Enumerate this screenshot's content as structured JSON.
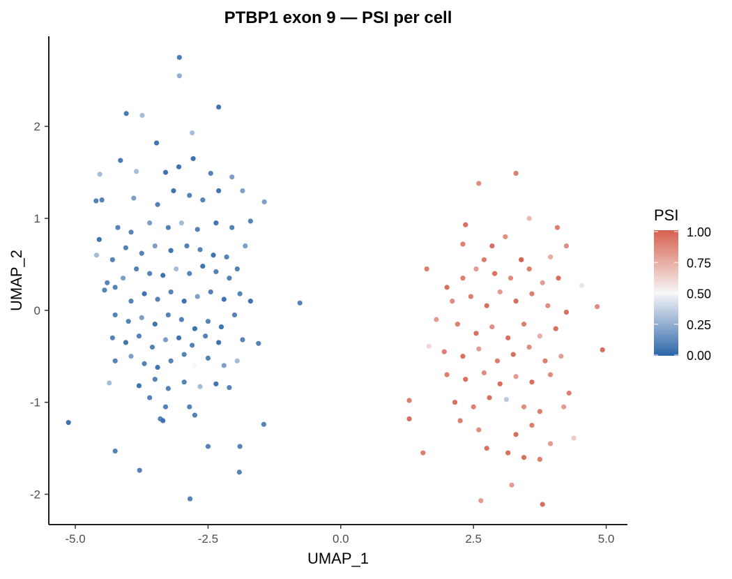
{
  "chart_data": {
    "type": "scatter",
    "title": "PTBP1 exon 9 — PSI per cell",
    "xlabel": "UMAP_1",
    "ylabel": "UMAP_2",
    "xlim": [
      -5.5,
      5.4
    ],
    "ylim": [
      -2.33,
      2.98
    ],
    "xticks": [
      -5.0,
      -2.5,
      0.0,
      2.5,
      5.0
    ],
    "xtick_labels": [
      "-5.0",
      "-2.5",
      "0.0",
      "2.5",
      "5.0"
    ],
    "yticks": [
      -2,
      -1,
      0,
      1,
      2
    ],
    "ytick_labels": [
      "-2",
      "-1",
      "0",
      "1",
      "2"
    ],
    "grid": false,
    "legend": {
      "title": "PSI",
      "placement": "right",
      "ticks": [
        0,
        0.25,
        0.5,
        0.75,
        1
      ],
      "tick_labels": [
        "0.00",
        "0.25",
        "0.50",
        "0.75",
        "1.00"
      ],
      "colors": {
        "low": "#2c65a8",
        "mid": "#f7f7f7",
        "high": "#d6604d"
      }
    },
    "points_fields": [
      "UMAP_1",
      "UMAP_2",
      "PSI"
    ],
    "points": [
      [
        -3.04,
        2.75,
        0.08
      ],
      [
        -3.04,
        2.55,
        0.25
      ],
      [
        -4.04,
        2.14,
        0.08
      ],
      [
        -3.74,
        2.12,
        0.3
      ],
      [
        -2.3,
        2.21,
        0.05
      ],
      [
        -2.8,
        1.93,
        0.3
      ],
      [
        -3.47,
        1.82,
        0.05
      ],
      [
        -5.13,
        -1.22,
        0.05
      ],
      [
        -4.25,
        -1.53,
        0.1
      ],
      [
        -3.79,
        -1.74,
        0.1
      ],
      [
        -2.84,
        -2.05,
        0.1
      ],
      [
        -2.5,
        -1.48,
        0.1
      ],
      [
        -1.9,
        -1.48,
        0.1
      ],
      [
        -1.91,
        -1.76,
        0.1
      ],
      [
        -1.45,
        -1.24,
        0.1
      ],
      [
        -0.77,
        0.08,
        0.1
      ],
      [
        -1.44,
        1.18,
        0.2
      ],
      [
        -4.36,
        -0.79,
        0.3
      ],
      [
        -4.61,
        1.19,
        0.1
      ],
      [
        -4.54,
        1.48,
        0.3
      ],
      [
        -4.15,
        1.63,
        0.08
      ],
      [
        -3.85,
        1.51,
        0.3
      ],
      [
        -3.3,
        1.5,
        0.05
      ],
      [
        -3.05,
        1.56,
        0.05
      ],
      [
        -2.78,
        1.65,
        0.05
      ],
      [
        -2.45,
        1.49,
        0.1
      ],
      [
        -2.05,
        1.45,
        0.2
      ],
      [
        -4.5,
        1.2,
        0.1
      ],
      [
        -3.9,
        1.22,
        0.2
      ],
      [
        -3.45,
        1.15,
        0.1
      ],
      [
        -3.15,
        1.3,
        0.05
      ],
      [
        -2.85,
        1.25,
        0.1
      ],
      [
        -2.6,
        1.2,
        0.1
      ],
      [
        -2.3,
        1.3,
        0.05
      ],
      [
        -1.85,
        1.3,
        0.2
      ],
      [
        -4.55,
        0.77,
        0.05
      ],
      [
        -4.2,
        0.9,
        0.1
      ],
      [
        -3.95,
        0.85,
        0.1
      ],
      [
        -3.6,
        0.95,
        0.2
      ],
      [
        -3.25,
        0.9,
        0.1
      ],
      [
        -3.0,
        0.95,
        0.3
      ],
      [
        -2.7,
        0.88,
        0.1
      ],
      [
        -2.35,
        0.95,
        0.05
      ],
      [
        -2.05,
        0.9,
        0.1
      ],
      [
        -1.7,
        0.97,
        0.1
      ],
      [
        -4.6,
        0.6,
        0.3
      ],
      [
        -4.3,
        0.55,
        0.1
      ],
      [
        -4.05,
        0.68,
        0.1
      ],
      [
        -3.75,
        0.62,
        0.1
      ],
      [
        -3.5,
        0.7,
        0.2
      ],
      [
        -3.2,
        0.65,
        0.05
      ],
      [
        -2.9,
        0.7,
        0.1
      ],
      [
        -2.65,
        0.66,
        0.1
      ],
      [
        -2.4,
        0.6,
        0.05
      ],
      [
        -2.15,
        0.58,
        0.1
      ],
      [
        -1.8,
        0.7,
        0.2
      ],
      [
        -4.4,
        0.3,
        0.1
      ],
      [
        -4.1,
        0.35,
        0.2
      ],
      [
        -3.85,
        0.45,
        0.1
      ],
      [
        -3.6,
        0.4,
        0.1
      ],
      [
        -3.35,
        0.38,
        0.05
      ],
      [
        -3.1,
        0.45,
        0.3
      ],
      [
        -2.85,
        0.4,
        0.1
      ],
      [
        -2.6,
        0.48,
        0.05
      ],
      [
        -2.35,
        0.42,
        0.1
      ],
      [
        -2.1,
        0.35,
        0.1
      ],
      [
        -1.95,
        0.45,
        0.1
      ],
      [
        -4.45,
        0.22,
        0.1
      ],
      [
        -4.25,
        0.25,
        0.1
      ],
      [
        -3.95,
        0.1,
        0.1
      ],
      [
        -3.7,
        0.18,
        0.05
      ],
      [
        -3.45,
        0.12,
        0.1
      ],
      [
        -3.2,
        0.2,
        0.1
      ],
      [
        -2.95,
        0.1,
        0.05
      ],
      [
        -2.7,
        0.15,
        0.2
      ],
      [
        -2.45,
        0.2,
        0.1
      ],
      [
        -2.2,
        0.12,
        0.05
      ],
      [
        -1.9,
        0.18,
        0.1
      ],
      [
        -1.7,
        0.1,
        0.05
      ],
      [
        -4.25,
        -0.05,
        0.1
      ],
      [
        -4.0,
        -0.12,
        0.1
      ],
      [
        -3.75,
        -0.08,
        0.2
      ],
      [
        -3.5,
        -0.15,
        0.05
      ],
      [
        -3.25,
        -0.05,
        0.1
      ],
      [
        -3.0,
        -0.1,
        0.1
      ],
      [
        -2.75,
        -0.2,
        0.05
      ],
      [
        -2.5,
        -0.12,
        0.1
      ],
      [
        -2.25,
        -0.18,
        0.05
      ],
      [
        -2.0,
        -0.05,
        0.1
      ],
      [
        -4.3,
        -0.3,
        0.1
      ],
      [
        -4.05,
        -0.35,
        0.05
      ],
      [
        -3.8,
        -0.28,
        0.1
      ],
      [
        -3.55,
        -0.4,
        0.1
      ],
      [
        -3.3,
        -0.32,
        0.2
      ],
      [
        -3.05,
        -0.3,
        0.05
      ],
      [
        -2.8,
        -0.38,
        0.1
      ],
      [
        -2.55,
        -0.28,
        0.1
      ],
      [
        -2.3,
        -0.35,
        0.05
      ],
      [
        -1.85,
        -0.32,
        0.1
      ],
      [
        -1.55,
        -0.36,
        0.1
      ],
      [
        -4.25,
        -0.55,
        0.1
      ],
      [
        -3.95,
        -0.5,
        0.2
      ],
      [
        -3.7,
        -0.58,
        0.1
      ],
      [
        -3.45,
        -0.62,
        0.05
      ],
      [
        -3.2,
        -0.55,
        0.1
      ],
      [
        -2.95,
        -0.48,
        0.1
      ],
      [
        -2.75,
        -0.6,
        0.5
      ],
      [
        -2.5,
        -0.52,
        0.1
      ],
      [
        -2.2,
        -0.6,
        0.2
      ],
      [
        -1.95,
        -0.55,
        0.3
      ],
      [
        -3.8,
        -0.82,
        0.05
      ],
      [
        -3.5,
        -0.75,
        0.1
      ],
      [
        -3.25,
        -0.85,
        0.1
      ],
      [
        -2.95,
        -0.78,
        0.1
      ],
      [
        -2.65,
        -0.83,
        0.3
      ],
      [
        -2.35,
        -0.8,
        0.05
      ],
      [
        -2.1,
        -0.84,
        0.1
      ],
      [
        -3.6,
        -0.95,
        0.1
      ],
      [
        -3.3,
        -1.05,
        0.1
      ],
      [
        -2.85,
        -1.05,
        0.1
      ],
      [
        -3.4,
        -1.18,
        0.1
      ],
      [
        -3.35,
        -1.2,
        0.05
      ],
      [
        -2.75,
        -1.14,
        0.1
      ],
      [
        3.3,
        1.49,
        0.9
      ],
      [
        2.6,
        1.38,
        0.85
      ],
      [
        3.55,
        1.0,
        0.7
      ],
      [
        4.08,
        0.9,
        0.9
      ],
      [
        4.54,
        0.27,
        0.45
      ],
      [
        4.83,
        0.04,
        0.85
      ],
      [
        4.93,
        -0.43,
        0.95
      ],
      [
        1.29,
        -0.98,
        0.9
      ],
      [
        1.29,
        -1.18,
        0.95
      ],
      [
        1.55,
        -1.55,
        0.9
      ],
      [
        2.64,
        -2.07,
        0.8
      ],
      [
        3.22,
        -1.9,
        0.8
      ],
      [
        3.8,
        -2.11,
        0.95
      ],
      [
        4.39,
        -1.39,
        0.65
      ],
      [
        3.12,
        -0.97,
        0.35
      ],
      [
        1.66,
        -0.39,
        0.6
      ],
      [
        1.62,
        0.45,
        0.9
      ],
      [
        2.35,
        0.93,
        0.95
      ],
      [
        2.3,
        0.72,
        0.9
      ],
      [
        3.1,
        0.8,
        0.85
      ],
      [
        2.85,
        0.7,
        0.95
      ],
      [
        4.25,
        0.7,
        0.85
      ],
      [
        3.95,
        0.58,
        0.75
      ],
      [
        2.7,
        0.55,
        0.9
      ],
      [
        3.4,
        0.55,
        1.0
      ],
      [
        2.0,
        0.25,
        0.95
      ],
      [
        2.3,
        0.35,
        0.9
      ],
      [
        2.55,
        0.45,
        0.8
      ],
      [
        2.9,
        0.4,
        0.95
      ],
      [
        3.2,
        0.35,
        0.85
      ],
      [
        3.55,
        0.45,
        0.9
      ],
      [
        3.8,
        0.3,
        0.8
      ],
      [
        4.1,
        0.35,
        0.95
      ],
      [
        2.1,
        0.1,
        0.85
      ],
      [
        2.45,
        0.15,
        0.9
      ],
      [
        2.75,
        0.05,
        0.95
      ],
      [
        3.0,
        0.2,
        0.8
      ],
      [
        3.3,
        0.1,
        0.95
      ],
      [
        3.6,
        0.18,
        0.9
      ],
      [
        3.9,
        0.05,
        0.85
      ],
      [
        4.25,
        -0.02,
        0.95
      ],
      [
        1.8,
        -0.1,
        0.8
      ],
      [
        2.2,
        -0.15,
        0.9
      ],
      [
        2.55,
        -0.25,
        0.95
      ],
      [
        2.85,
        -0.18,
        0.85
      ],
      [
        3.15,
        -0.3,
        0.95
      ],
      [
        3.45,
        -0.15,
        0.9
      ],
      [
        3.75,
        -0.28,
        0.75
      ],
      [
        4.05,
        -0.2,
        0.95
      ],
      [
        1.95,
        -0.45,
        0.9
      ],
      [
        2.3,
        -0.5,
        0.95
      ],
      [
        2.6,
        -0.42,
        0.8
      ],
      [
        2.95,
        -0.55,
        0.9
      ],
      [
        3.25,
        -0.48,
        0.95
      ],
      [
        3.55,
        -0.4,
        0.85
      ],
      [
        3.85,
        -0.55,
        0.9
      ],
      [
        4.15,
        -0.5,
        0.8
      ],
      [
        2.0,
        -0.7,
        0.9
      ],
      [
        2.35,
        -0.75,
        0.95
      ],
      [
        2.7,
        -0.68,
        0.85
      ],
      [
        3.0,
        -0.8,
        0.95
      ],
      [
        3.3,
        -0.72,
        0.8
      ],
      [
        3.6,
        -0.78,
        0.95
      ],
      [
        3.95,
        -0.7,
        0.85
      ],
      [
        4.3,
        -0.9,
        0.9
      ],
      [
        2.15,
        -1.0,
        0.95
      ],
      [
        2.5,
        -1.05,
        0.9
      ],
      [
        2.8,
        -0.95,
        0.95
      ],
      [
        3.45,
        -1.05,
        0.85
      ],
      [
        3.75,
        -1.1,
        0.9
      ],
      [
        4.2,
        -1.05,
        0.8
      ],
      [
        2.25,
        -1.2,
        0.9
      ],
      [
        2.6,
        -1.3,
        0.85
      ],
      [
        3.3,
        -1.35,
        0.95
      ],
      [
        3.6,
        -1.25,
        0.9
      ],
      [
        3.95,
        -1.45,
        0.8
      ],
      [
        2.75,
        -1.5,
        0.95
      ],
      [
        3.15,
        -1.55,
        0.95
      ],
      [
        3.45,
        -1.6,
        0.95
      ],
      [
        3.75,
        -1.62,
        0.9
      ]
    ]
  }
}
